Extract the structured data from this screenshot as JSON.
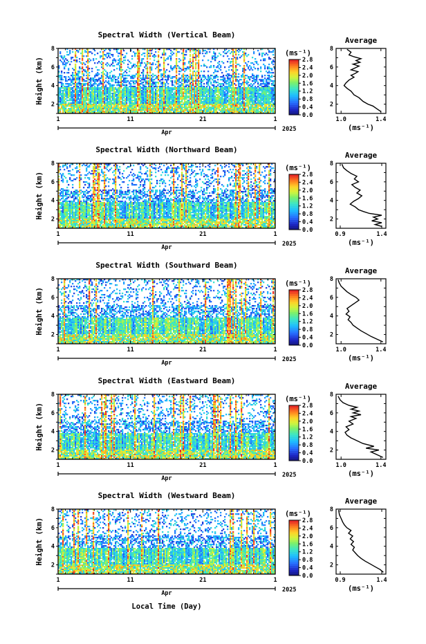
{
  "figure": {
    "xlabel": "Local Time (Day)",
    "month_label": "Apr",
    "year_label": "2025",
    "avg_title": "Average",
    "unit_label": "(ms⁻¹)",
    "colorbar_label": "(ms⁻¹)"
  },
  "chart_data": [
    {
      "type": "heatmap",
      "title": "Spectral Width (Vertical Beam)",
      "ylabel": "Height (km)",
      "xticks": [
        "1",
        "11",
        "21",
        "1"
      ],
      "yticks": [
        2,
        4,
        6,
        8
      ],
      "ylim": [
        1,
        8
      ],
      "colorbar": {
        "range": [
          0.0,
          2.8
        ],
        "ticks": [
          "0.0",
          "0.4",
          "0.8",
          "1.2",
          "1.6",
          "2.0",
          "2.4",
          "2.8"
        ]
      },
      "profile": {
        "type": "line",
        "title": "Average",
        "xlabel": "(ms⁻¹)",
        "xticks": [
          "1.0",
          "1.4"
        ],
        "xlim": [
          0.95,
          1.45
        ],
        "yticks": [
          2,
          4,
          6,
          8
        ],
        "ylim": [
          1,
          8
        ],
        "points": [
          [
            1.4,
            1.2
          ],
          [
            1.36,
            1.5
          ],
          [
            1.32,
            1.8
          ],
          [
            1.27,
            2.0
          ],
          [
            1.22,
            2.3
          ],
          [
            1.18,
            2.7
          ],
          [
            1.13,
            3.0
          ],
          [
            1.1,
            3.4
          ],
          [
            1.06,
            3.7
          ],
          [
            1.03,
            4.0
          ],
          [
            1.05,
            4.3
          ],
          [
            1.08,
            4.6
          ],
          [
            1.13,
            4.9
          ],
          [
            1.1,
            5.1
          ],
          [
            1.14,
            5.3
          ],
          [
            1.17,
            5.5
          ],
          [
            1.1,
            5.7
          ],
          [
            1.14,
            5.9
          ],
          [
            1.18,
            6.1
          ],
          [
            1.12,
            6.3
          ],
          [
            1.19,
            6.5
          ],
          [
            1.15,
            6.7
          ],
          [
            1.2,
            6.9
          ],
          [
            1.13,
            7.1
          ],
          [
            1.08,
            7.3
          ],
          [
            1.1,
            7.6
          ],
          [
            1.06,
            7.9
          ]
        ]
      }
    },
    {
      "type": "heatmap",
      "title": "Spectral Width (Northward Beam)",
      "ylabel": "Height (km)",
      "xticks": [
        "1",
        "11",
        "21",
        "1"
      ],
      "yticks": [
        2,
        4,
        6,
        8
      ],
      "ylim": [
        1,
        8
      ],
      "colorbar": {
        "range": [
          0.0,
          2.8
        ],
        "ticks": [
          "0.0",
          "0.4",
          "0.8",
          "1.2",
          "1.6",
          "2.0",
          "2.4",
          "2.8"
        ]
      },
      "profile": {
        "type": "line",
        "title": "Average",
        "xlabel": "(ms⁻¹)",
        "xticks": [
          "0.9",
          "1.4"
        ],
        "xlim": [
          0.85,
          1.45
        ],
        "yticks": [
          2,
          4,
          6,
          8
        ],
        "ylim": [
          1,
          8
        ],
        "points": [
          [
            1.4,
            1.2
          ],
          [
            1.32,
            1.4
          ],
          [
            1.4,
            1.6
          ],
          [
            1.28,
            1.8
          ],
          [
            1.35,
            2.0
          ],
          [
            1.3,
            2.2
          ],
          [
            1.4,
            2.4
          ],
          [
            1.25,
            2.6
          ],
          [
            1.18,
            2.8
          ],
          [
            1.12,
            3.0
          ],
          [
            1.08,
            3.3
          ],
          [
            1.02,
            3.6
          ],
          [
            1.06,
            3.9
          ],
          [
            1.12,
            4.2
          ],
          [
            1.16,
            4.5
          ],
          [
            1.1,
            4.8
          ],
          [
            1.14,
            5.1
          ],
          [
            1.08,
            5.4
          ],
          [
            1.04,
            5.7
          ],
          [
            1.12,
            6.0
          ],
          [
            1.07,
            6.3
          ],
          [
            1.1,
            6.6
          ],
          [
            1.03,
            6.9
          ],
          [
            0.98,
            7.2
          ],
          [
            0.94,
            7.5
          ],
          [
            0.92,
            7.9
          ]
        ]
      }
    },
    {
      "type": "heatmap",
      "title": "Spectral Width (Southward Beam)",
      "ylabel": "Height (km)",
      "xticks": [
        "1",
        "11",
        "21",
        "1"
      ],
      "yticks": [
        2,
        4,
        6,
        8
      ],
      "ylim": [
        1,
        8
      ],
      "colorbar": {
        "range": [
          0.0,
          2.8
        ],
        "ticks": [
          "0.0",
          "0.4",
          "0.8",
          "1.2",
          "1.6",
          "2.0",
          "2.4",
          "2.8"
        ]
      },
      "profile": {
        "type": "line",
        "title": "Average",
        "xlabel": "(ms⁻¹)",
        "xticks": [
          "1.0",
          "1.4"
        ],
        "xlim": [
          0.95,
          1.45
        ],
        "yticks": [
          2,
          4,
          6,
          8
        ],
        "ylim": [
          1,
          8
        ],
        "points": [
          [
            1.42,
            1.2
          ],
          [
            1.36,
            1.5
          ],
          [
            1.3,
            1.8
          ],
          [
            1.25,
            2.1
          ],
          [
            1.2,
            2.4
          ],
          [
            1.16,
            2.7
          ],
          [
            1.12,
            3.0
          ],
          [
            1.1,
            3.3
          ],
          [
            1.07,
            3.6
          ],
          [
            1.09,
            3.9
          ],
          [
            1.05,
            4.2
          ],
          [
            1.08,
            4.5
          ],
          [
            1.06,
            4.8
          ],
          [
            1.1,
            5.1
          ],
          [
            1.14,
            5.4
          ],
          [
            1.18,
            5.7
          ],
          [
            1.15,
            6.0
          ],
          [
            1.1,
            6.3
          ],
          [
            1.06,
            6.6
          ],
          [
            1.03,
            6.9
          ],
          [
            1.0,
            7.2
          ],
          [
            0.98,
            7.6
          ],
          [
            0.97,
            7.9
          ]
        ]
      }
    },
    {
      "type": "heatmap",
      "title": "Spectral Width (Eastward Beam)",
      "ylabel": "Height (km)",
      "xticks": [
        "1",
        "11",
        "21",
        "1"
      ],
      "yticks": [
        2,
        4,
        6,
        8
      ],
      "ylim": [
        1,
        8
      ],
      "colorbar": {
        "range": [
          0.0,
          2.8
        ],
        "ticks": [
          "0.0",
          "0.4",
          "0.8",
          "1.2",
          "1.6",
          "2.0",
          "2.4",
          "2.8"
        ]
      },
      "profile": {
        "type": "line",
        "title": "Average",
        "xlabel": "(ms⁻¹)",
        "xticks": [
          "1.0",
          "1.4"
        ],
        "xlim": [
          0.95,
          1.45
        ],
        "yticks": [
          2,
          4,
          6,
          8
        ],
        "ylim": [
          1,
          8
        ],
        "points": [
          [
            1.42,
            1.2
          ],
          [
            1.36,
            1.5
          ],
          [
            1.3,
            1.8
          ],
          [
            1.38,
            2.0
          ],
          [
            1.25,
            2.2
          ],
          [
            1.33,
            2.4
          ],
          [
            1.22,
            2.7
          ],
          [
            1.16,
            3.0
          ],
          [
            1.1,
            3.3
          ],
          [
            1.06,
            3.6
          ],
          [
            1.04,
            3.9
          ],
          [
            1.08,
            4.2
          ],
          [
            1.05,
            4.5
          ],
          [
            1.12,
            4.8
          ],
          [
            1.08,
            5.1
          ],
          [
            1.15,
            5.4
          ],
          [
            1.1,
            5.6
          ],
          [
            1.2,
            5.8
          ],
          [
            1.12,
            6.0
          ],
          [
            1.18,
            6.2
          ],
          [
            1.1,
            6.4
          ],
          [
            1.16,
            6.6
          ],
          [
            1.08,
            6.8
          ],
          [
            1.02,
            7.1
          ],
          [
            0.99,
            7.4
          ],
          [
            0.97,
            7.8
          ]
        ]
      }
    },
    {
      "type": "heatmap",
      "title": "Spectral Width (Westward Beam)",
      "ylabel": "Height (km)",
      "xticks": [
        "1",
        "11",
        "21",
        "1"
      ],
      "yticks": [
        2,
        4,
        6,
        8
      ],
      "ylim": [
        1,
        8
      ],
      "colorbar": {
        "range": [
          0.0,
          2.8
        ],
        "ticks": [
          "0.0",
          "0.4",
          "0.8",
          "1.2",
          "1.6",
          "2.0",
          "2.4",
          "2.8"
        ]
      },
      "profile": {
        "type": "line",
        "title": "Average",
        "xlabel": "(ms⁻¹)",
        "xticks": [
          "0.9",
          "1.4"
        ],
        "xlim": [
          0.85,
          1.45
        ],
        "yticks": [
          2,
          4,
          6,
          8
        ],
        "ylim": [
          1,
          8
        ],
        "points": [
          [
            1.42,
            1.2
          ],
          [
            1.38,
            1.5
          ],
          [
            1.32,
            1.8
          ],
          [
            1.26,
            2.1
          ],
          [
            1.2,
            2.4
          ],
          [
            1.15,
            2.7
          ],
          [
            1.11,
            3.0
          ],
          [
            1.08,
            3.3
          ],
          [
            1.05,
            3.6
          ],
          [
            1.07,
            3.9
          ],
          [
            1.03,
            4.2
          ],
          [
            1.06,
            4.5
          ],
          [
            1.02,
            4.8
          ],
          [
            1.05,
            5.1
          ],
          [
            1.0,
            5.4
          ],
          [
            1.03,
            5.7
          ],
          [
            0.98,
            6.0
          ],
          [
            0.95,
            6.3
          ],
          [
            0.93,
            6.6
          ],
          [
            0.91,
            7.0
          ],
          [
            0.89,
            7.4
          ],
          [
            0.88,
            7.9
          ]
        ]
      }
    }
  ]
}
